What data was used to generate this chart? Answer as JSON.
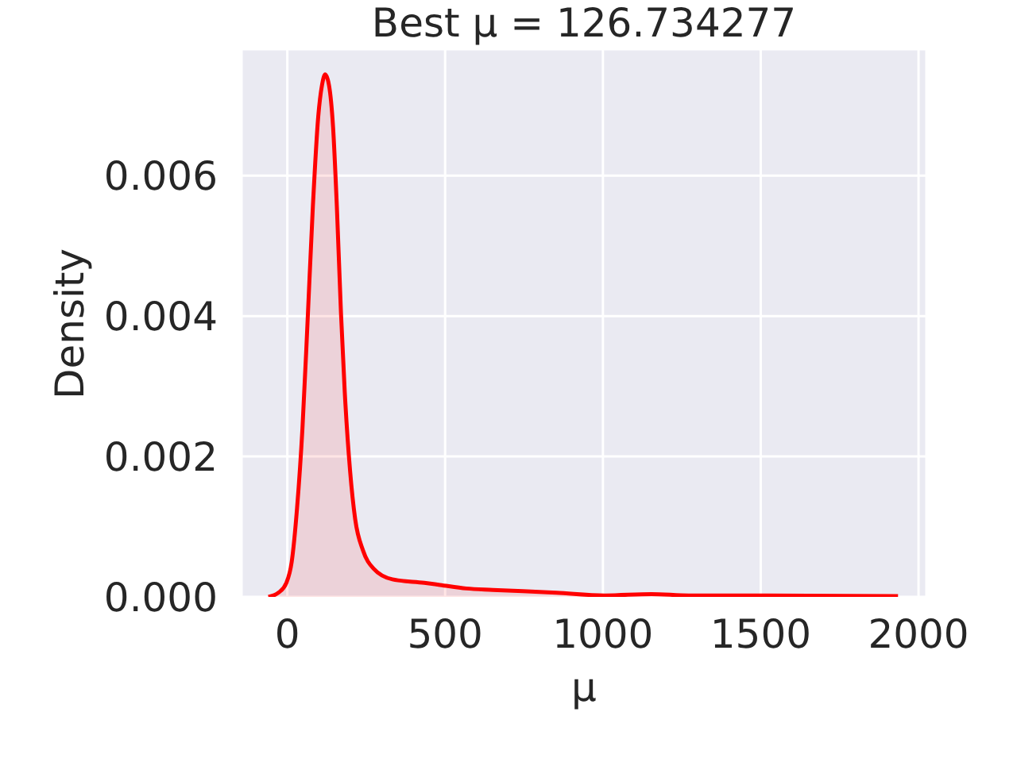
{
  "chart_data": {
    "type": "area",
    "title": "Best μ = 126.734277",
    "xlabel": "μ",
    "ylabel": "Density",
    "x": [
      -60,
      -28,
      -3,
      14,
      31,
      48,
      64,
      81,
      98,
      110,
      120,
      132,
      145,
      157,
      170,
      182,
      199,
      215,
      240,
      274,
      333,
      434,
      484,
      567,
      651,
      853,
      1004,
      1154,
      1272,
      1522,
      1935
    ],
    "series": [
      {
        "color": "#ff0000",
        "values": [
          0,
          6e-05,
          0.0002,
          0.0005,
          0.00127,
          0.0024,
          0.0039,
          0.00556,
          0.00684,
          0.00729,
          0.00744,
          0.00729,
          0.00669,
          0.00556,
          0.00405,
          0.00292,
          0.00179,
          0.00111,
          0.00066,
          0.0004,
          0.00025,
          0.0002,
          0.00017,
          0.00012,
          0.0001,
          6e-05,
          2e-05,
          4e-05,
          2e-05,
          2e-05,
          1e-05
        ]
      }
    ],
    "xlim": [
      -145,
      2025
    ],
    "xticks": [
      0,
      500,
      1000,
      1500,
      2000
    ],
    "ylim": [
      0,
      0.0078
    ],
    "yticks": [
      {
        "value": 0,
        "label": "0.000"
      },
      {
        "value": 0.002,
        "label": "0.002"
      },
      {
        "value": 0.004,
        "label": "0.004"
      },
      {
        "value": 0.006,
        "label": "0.006"
      }
    ],
    "grid": true
  }
}
